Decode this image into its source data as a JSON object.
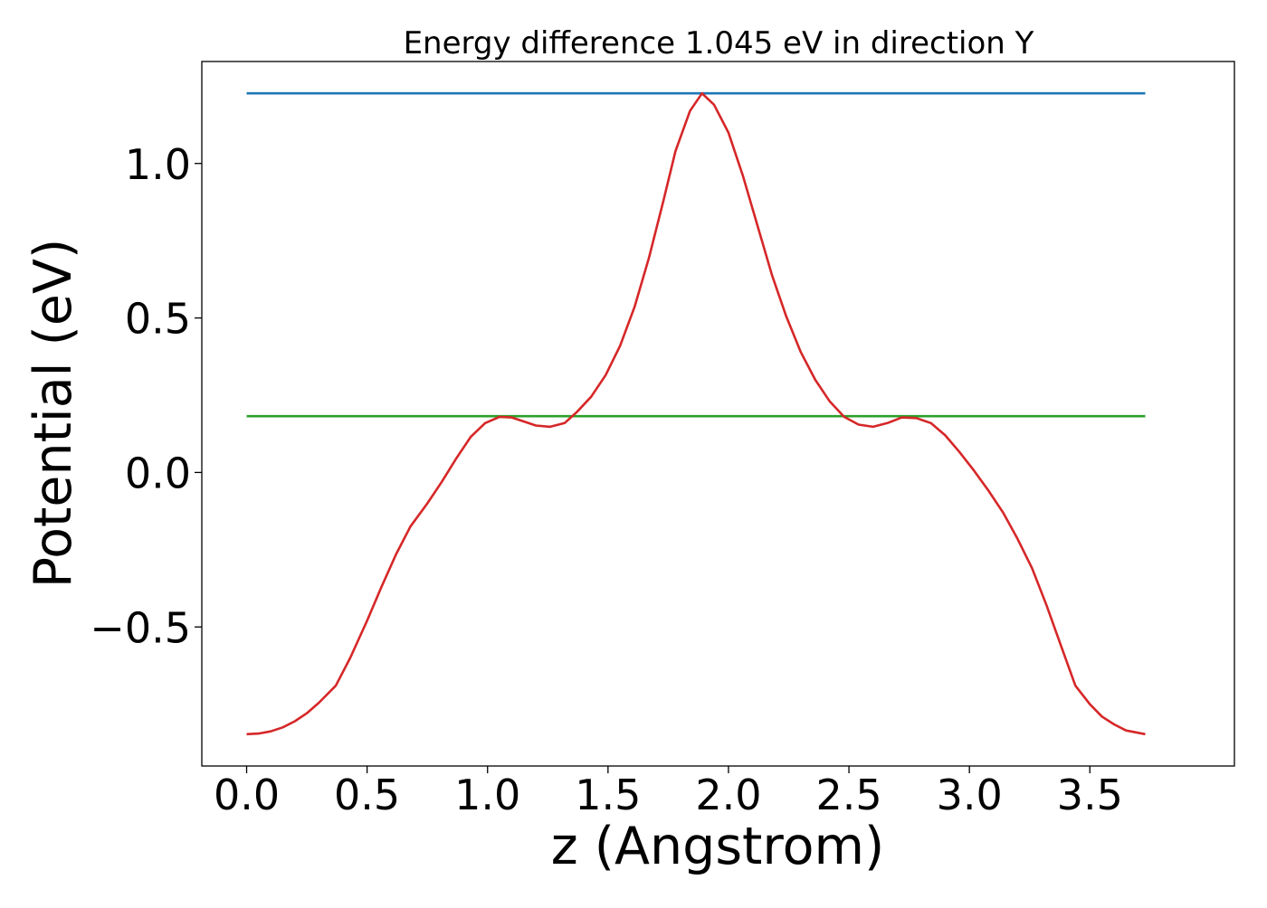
{
  "chart_data": {
    "type": "line",
    "title": "Energy difference 1.045 eV in direction Y",
    "xlabel": "z (Angstrom)",
    "ylabel": "Potential (eV)",
    "xlim": [
      -0.186,
      4.1
    ],
    "ylim": [
      -0.95,
      1.33
    ],
    "xticks": [
      0.0,
      0.5,
      1.0,
      1.5,
      2.0,
      2.5,
      3.0,
      3.5
    ],
    "xtick_labels": [
      "0.0",
      "0.5",
      "1.0",
      "1.5",
      "2.0",
      "2.5",
      "3.0",
      "3.5"
    ],
    "yticks": [
      -0.5,
      0.0,
      0.5,
      1.0
    ],
    "ytick_labels": [
      "−0.5",
      "0.0",
      "0.5",
      "1.0"
    ],
    "grid": false,
    "legend": "none",
    "series": [
      {
        "color": "#1f77b4",
        "x": [
          0.0,
          3.73
        ],
        "y": [
          1.227,
          1.227
        ]
      },
      {
        "color": "#2ca02c",
        "x": [
          0.0,
          3.73
        ],
        "y": [
          0.182,
          0.182
        ]
      },
      {
        "color": "#d62728",
        "x": [
          0.0,
          0.05,
          0.1,
          0.15,
          0.2,
          0.25,
          0.3,
          0.37,
          0.43,
          0.5,
          0.56,
          0.62,
          0.68,
          0.75,
          0.81,
          0.87,
          0.93,
          0.99,
          1.05,
          1.1,
          1.15,
          1.2,
          1.26,
          1.32,
          1.37,
          1.43,
          1.49,
          1.55,
          1.61,
          1.67,
          1.73,
          1.78,
          1.84,
          1.89,
          1.94,
          2.0,
          2.06,
          2.12,
          2.18,
          2.24,
          2.3,
          2.36,
          2.42,
          2.48,
          2.54,
          2.6,
          2.66,
          2.72,
          2.78,
          2.84,
          2.9,
          2.96,
          3.02,
          3.08,
          3.14,
          3.2,
          3.26,
          3.32,
          3.38,
          3.44,
          3.5,
          3.55,
          3.6,
          3.65,
          3.73
        ],
        "y": [
          -0.847,
          -0.845,
          -0.838,
          -0.825,
          -0.805,
          -0.779,
          -0.745,
          -0.69,
          -0.6,
          -0.48,
          -0.37,
          -0.265,
          -0.175,
          -0.1,
          -0.03,
          0.045,
          0.115,
          0.16,
          0.18,
          0.178,
          0.165,
          0.152,
          0.148,
          0.16,
          0.195,
          0.245,
          0.315,
          0.41,
          0.535,
          0.695,
          0.88,
          1.04,
          1.17,
          1.227,
          1.19,
          1.1,
          0.96,
          0.8,
          0.64,
          0.505,
          0.39,
          0.3,
          0.23,
          0.18,
          0.155,
          0.148,
          0.16,
          0.178,
          0.176,
          0.16,
          0.12,
          0.065,
          0.005,
          -0.06,
          -0.13,
          -0.215,
          -0.31,
          -0.43,
          -0.56,
          -0.69,
          -0.75,
          -0.79,
          -0.815,
          -0.835,
          -0.847
        ]
      }
    ]
  }
}
